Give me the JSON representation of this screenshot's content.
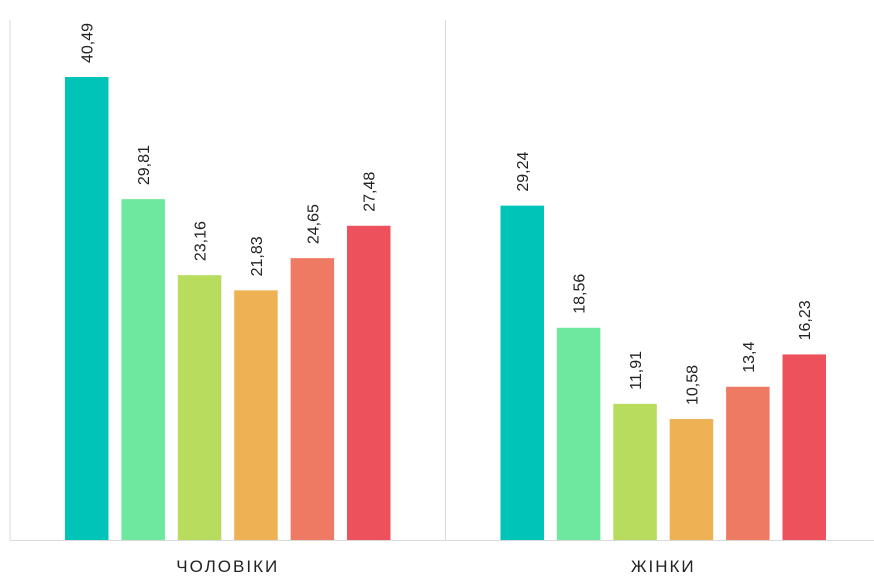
{
  "chart_data": {
    "type": "bar",
    "categories": [
      "ЧОЛОВІКИ",
      "ЖІНКИ"
    ],
    "series": [
      {
        "color": "#00c4b8",
        "values": [
          40.49,
          29.24
        ],
        "value_labels": [
          "40,49",
          "29,24"
        ]
      },
      {
        "color": "#6ee89e",
        "values": [
          29.81,
          18.56
        ],
        "value_labels": [
          "29,81",
          "18,56"
        ]
      },
      {
        "color": "#b8dd5e",
        "values": [
          23.16,
          11.91
        ],
        "value_labels": [
          "23,16",
          "11,91"
        ]
      },
      {
        "color": "#eeb255",
        "values": [
          21.83,
          10.58
        ],
        "value_labels": [
          "21,83",
          "10,58"
        ]
      },
      {
        "color": "#ef7a63",
        "values": [
          24.65,
          13.4
        ],
        "value_labels": [
          "24,65",
          "13,4"
        ]
      },
      {
        "color": "#ec515c",
        "values": [
          27.48,
          16.23
        ],
        "value_labels": [
          "27,48",
          "16,23"
        ]
      }
    ],
    "ylim": [
      0,
      46
    ]
  }
}
